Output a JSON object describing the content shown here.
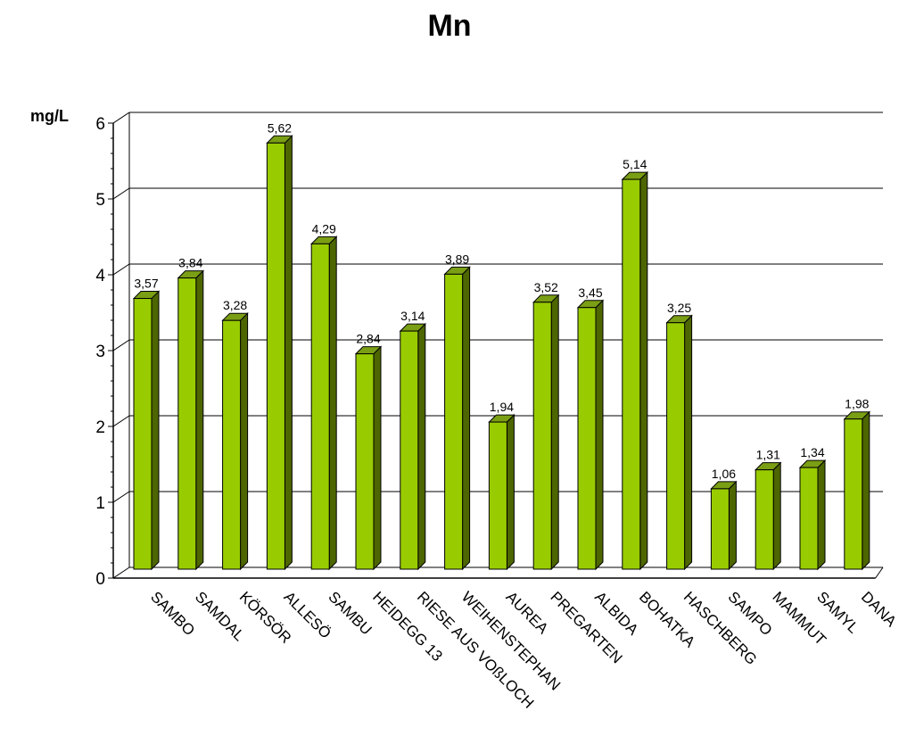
{
  "chart_data": {
    "type": "bar",
    "title": "Mn",
    "ylabel": "mg/L",
    "xlabel": "",
    "ylim": [
      0,
      6
    ],
    "yticks": [
      "0",
      "1",
      "2",
      "3",
      "4",
      "5",
      "6"
    ],
    "grid": true,
    "categories": [
      "SAMBO",
      "SAMDAL",
      "KÖRSÖR",
      "ALLESÖ",
      "SAMBU",
      "HEIDEGG 13",
      "RIESE AUS VOßLOCH",
      "WEIHENSTEPHAN",
      "AUREA",
      "PREGARTEN",
      "ALBIDA",
      "BOHATKA",
      "HASCHBERG",
      "SAMPO",
      "MAMMUT",
      "SAMYL",
      "DANA"
    ],
    "values": [
      3.57,
      3.84,
      3.28,
      5.62,
      4.29,
      2.84,
      3.14,
      3.89,
      1.94,
      3.52,
      3.45,
      5.14,
      3.25,
      1.06,
      1.31,
      1.34,
      1.98
    ],
    "value_labels": [
      "3,57",
      "3,84",
      "3,28",
      "5,62",
      "4,29",
      "2,84",
      "3,14",
      "3,89",
      "1,94",
      "3,52",
      "3,45",
      "5,14",
      "3,25",
      "1,06",
      "1,31",
      "1,34",
      "1,98"
    ],
    "colors": {
      "bar_front": "#99cc00",
      "bar_top": "#7a9e14",
      "bar_side": "#4d6600",
      "grid": "#000000"
    }
  }
}
